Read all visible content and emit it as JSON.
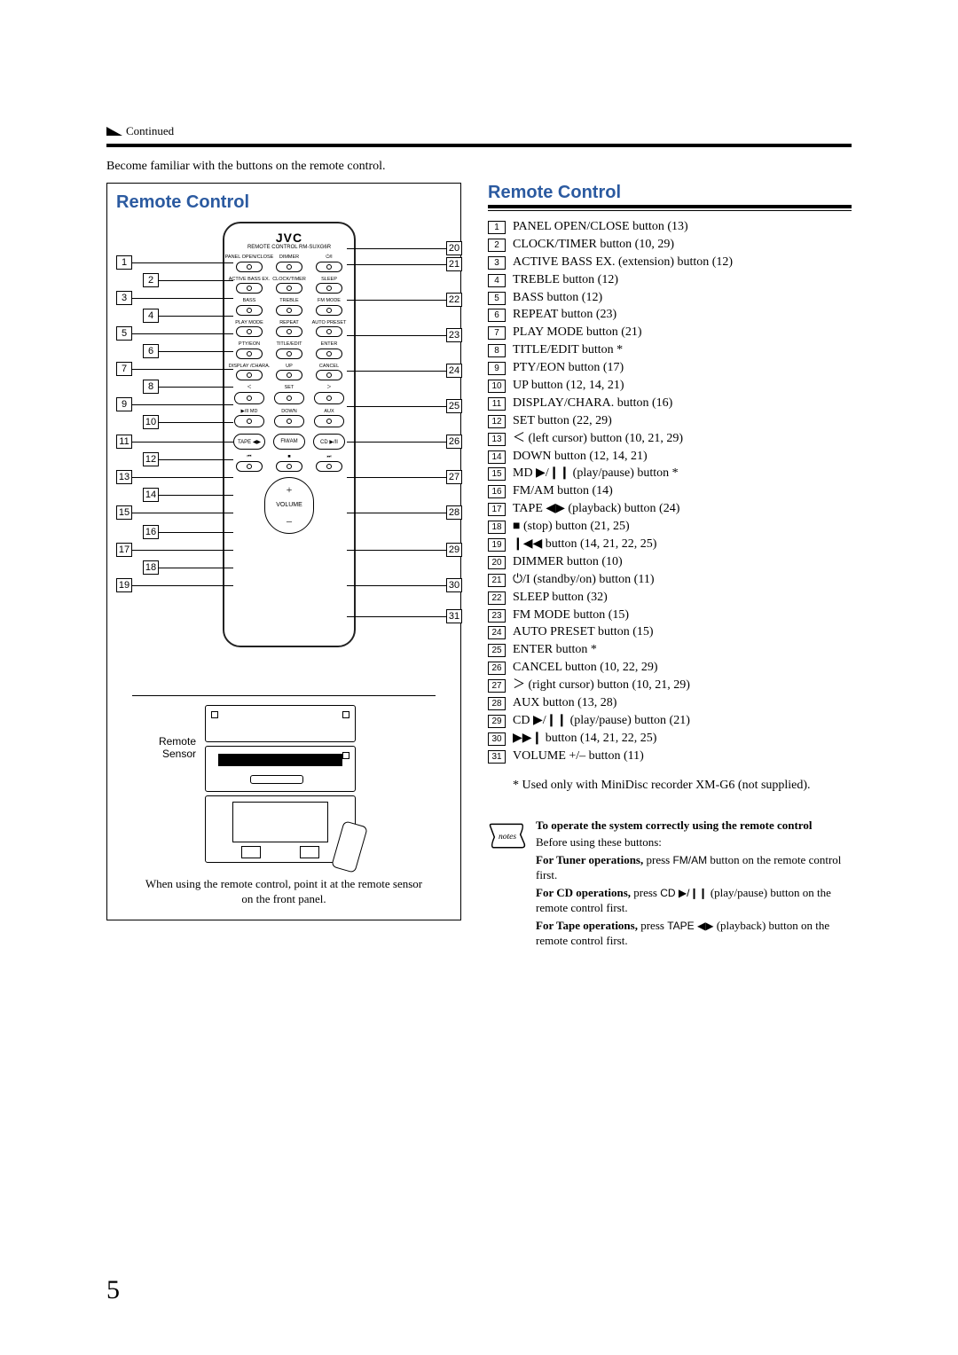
{
  "header": {
    "continued": "Continued"
  },
  "intro": "Become familiar with the buttons on the remote control.",
  "page_number": "5",
  "colors": {
    "heading": "#2b5aa0",
    "rule": "#000000",
    "text": "#000000",
    "background": "#ffffff"
  },
  "diagram": {
    "title": "Remote Control",
    "brand": "JVC",
    "subbrand": "REMOTE CONTROL RM-SUXG6R",
    "rows": [
      [
        {
          "label": "PANEL OPEN/CLOSE"
        },
        {
          "label": "DIMMER"
        },
        {
          "label": "⏻/I"
        }
      ],
      [
        {
          "label": "ACTIVE BASS EX."
        },
        {
          "label": "CLOCK/TIMER"
        },
        {
          "label": "SLEEP"
        }
      ],
      [
        {
          "label": "BASS"
        },
        {
          "label": "TREBLE"
        },
        {
          "label": "FM MODE"
        }
      ],
      [
        {
          "label": "PLAY MODE"
        },
        {
          "label": "REPEAT"
        },
        {
          "label": "AUTO PRESET"
        }
      ],
      [
        {
          "label": "PTY/EON"
        },
        {
          "label": "TITLE/EDIT"
        },
        {
          "label": "ENTER"
        }
      ],
      [
        {
          "label": "DISPLAY /CHARA."
        },
        {
          "label": "UP"
        },
        {
          "label": "CANCEL"
        }
      ],
      [
        {
          "label": "＜"
        },
        {
          "label": "SET"
        },
        {
          "label": "＞"
        }
      ],
      [
        {
          "label": "▶/II  MD"
        },
        {
          "label": "DOWN"
        },
        {
          "label": "AUX"
        }
      ],
      [
        {
          "label": "TAPE ◀▶"
        },
        {
          "label": "FM/AM"
        },
        {
          "label": "CD ▶/II"
        }
      ],
      [
        {
          "label": "⏮"
        },
        {
          "label": "■"
        },
        {
          "label": "⏭"
        }
      ]
    ],
    "volume_label": "VOLUME",
    "left_nums": [
      "1",
      "2",
      "3",
      "4",
      "5",
      "6",
      "7",
      "8",
      "9",
      "10",
      "11",
      "12",
      "13",
      "14",
      "15",
      "16",
      "17",
      "18",
      "19"
    ],
    "right_nums": [
      "20",
      "21",
      "22",
      "23",
      "24",
      "25",
      "26",
      "27",
      "28",
      "29",
      "30",
      "31"
    ],
    "sensor_label": "Remote Sensor",
    "caption": "When using the remote control, point it at the remote sensor on the front panel."
  },
  "right": {
    "title": "Remote Control",
    "items": [
      {
        "n": "1",
        "t": "PANEL OPEN/CLOSE button (13)"
      },
      {
        "n": "2",
        "t": "CLOCK/TIMER button (10, 29)"
      },
      {
        "n": "3",
        "t": "ACTIVE BASS EX. (extension) button (12)"
      },
      {
        "n": "4",
        "t": "TREBLE button (12)"
      },
      {
        "n": "5",
        "t": "BASS button (12)"
      },
      {
        "n": "6",
        "t": "REPEAT button (23)"
      },
      {
        "n": "7",
        "t": "PLAY MODE button (21)"
      },
      {
        "n": "8",
        "t": "TITLE/EDIT button *"
      },
      {
        "n": "9",
        "t": "PTY/EON button (17)"
      },
      {
        "n": "10",
        "t": "UP button (12, 14, 21)"
      },
      {
        "n": "11",
        "t": "DISPLAY/CHARA. button (16)"
      },
      {
        "n": "12",
        "t": "SET button (22, 29)"
      },
      {
        "n": "13",
        "t": "＜ (left cursor) button (10, 21, 29)"
      },
      {
        "n": "14",
        "t": "DOWN button (12, 14, 21)"
      },
      {
        "n": "15",
        "t": "MD ▶/❙❙ (play/pause) button *"
      },
      {
        "n": "16",
        "t": "FM/AM button (14)"
      },
      {
        "n": "17",
        "t": "TAPE ◀▶ (playback) button (24)"
      },
      {
        "n": "18",
        "t": "■ (stop) button (21, 25)"
      },
      {
        "n": "19",
        "t": "❙◀◀ button (14, 21, 22, 25)"
      },
      {
        "n": "20",
        "t": "DIMMER button (10)"
      },
      {
        "n": "21",
        "t": "⏻/I (standby/on) button (11)"
      },
      {
        "n": "22",
        "t": "SLEEP button (32)"
      },
      {
        "n": "23",
        "t": "FM MODE button (15)"
      },
      {
        "n": "24",
        "t": "AUTO PRESET button (15)"
      },
      {
        "n": "25",
        "t": "ENTER button *"
      },
      {
        "n": "26",
        "t": "CANCEL button (10, 22, 29)"
      },
      {
        "n": "27",
        "t": "＞ (right cursor) button (10, 21, 29)"
      },
      {
        "n": "28",
        "t": "AUX button (13, 28)"
      },
      {
        "n": "29",
        "t": "CD ▶/❙❙ (play/pause) button (21)"
      },
      {
        "n": "30",
        "t": "▶▶❙ button (14, 21, 22, 25)"
      },
      {
        "n": "31",
        "t": "VOLUME +/– button (11)"
      }
    ],
    "footnote": "* Used only with MiniDisc recorder XM-G6 (not supplied).",
    "notes": {
      "icon_label": "notes",
      "title": "To operate the system correctly using the remote control",
      "lead": "Before using these buttons:",
      "lines": [
        {
          "b": "For Tuner operations,",
          "p": " press ",
          "s": "FM/AM",
          "t": " button on the remote control first."
        },
        {
          "b": "For CD operations,",
          "p": " press ",
          "s": "CD ▶/❙❙",
          "t": " (play/pause) button on the remote control first."
        },
        {
          "b": "For Tape operations,",
          "p": " press ",
          "s": "TAPE ◀▶",
          "t": " (playback) button on the remote control first."
        }
      ]
    }
  }
}
